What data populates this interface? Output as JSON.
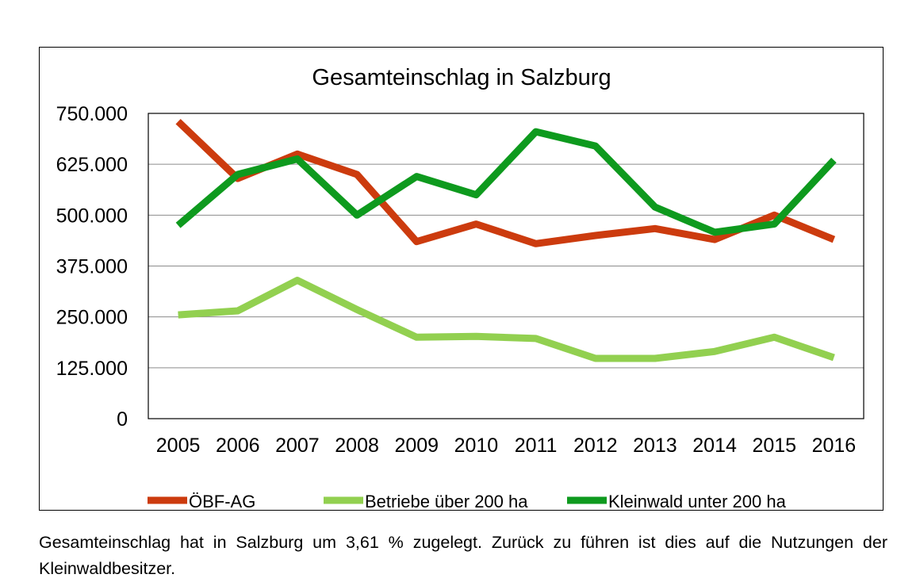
{
  "chart_data": {
    "type": "line",
    "title": "Gesamteinschlag in Salzburg",
    "xlabel": "",
    "ylabel": "",
    "categories": [
      "2005",
      "2006",
      "2007",
      "2008",
      "2009",
      "2010",
      "2011",
      "2012",
      "2013",
      "2014",
      "2015",
      "2016"
    ],
    "ylim": [
      0,
      750000
    ],
    "y_ticks": [
      0,
      125000,
      250000,
      375000,
      500000,
      625000,
      750000
    ],
    "y_tick_labels": [
      "0",
      "125.000",
      "250.000",
      "375.000",
      "500.000",
      "625.000",
      "750.000"
    ],
    "grid": true,
    "legend_position": "bottom",
    "series": [
      {
        "name": "ÖBF-AG",
        "color": "#cc3b0e",
        "values": [
          730000,
          590000,
          650000,
          600000,
          435000,
          478000,
          430000,
          450000,
          467000,
          440000,
          500000,
          440000
        ]
      },
      {
        "name": "Betriebe über 200 ha",
        "color": "#92d050",
        "values": [
          255000,
          265000,
          340000,
          268000,
          200000,
          202000,
          197000,
          148000,
          148000,
          165000,
          200000,
          150000
        ]
      },
      {
        "name": "Kleinwald unter 200 ha",
        "color": "#0e9a1e",
        "values": [
          475000,
          600000,
          638000,
          500000,
          595000,
          550000,
          705000,
          670000,
          520000,
          458000,
          478000,
          635000
        ]
      }
    ]
  },
  "caption": "Gesamteinschlag hat in Salzburg um 3,61 % zugelegt. Zurück zu führen ist dies auf die Nutzungen der Kleinwaldbesitzer."
}
